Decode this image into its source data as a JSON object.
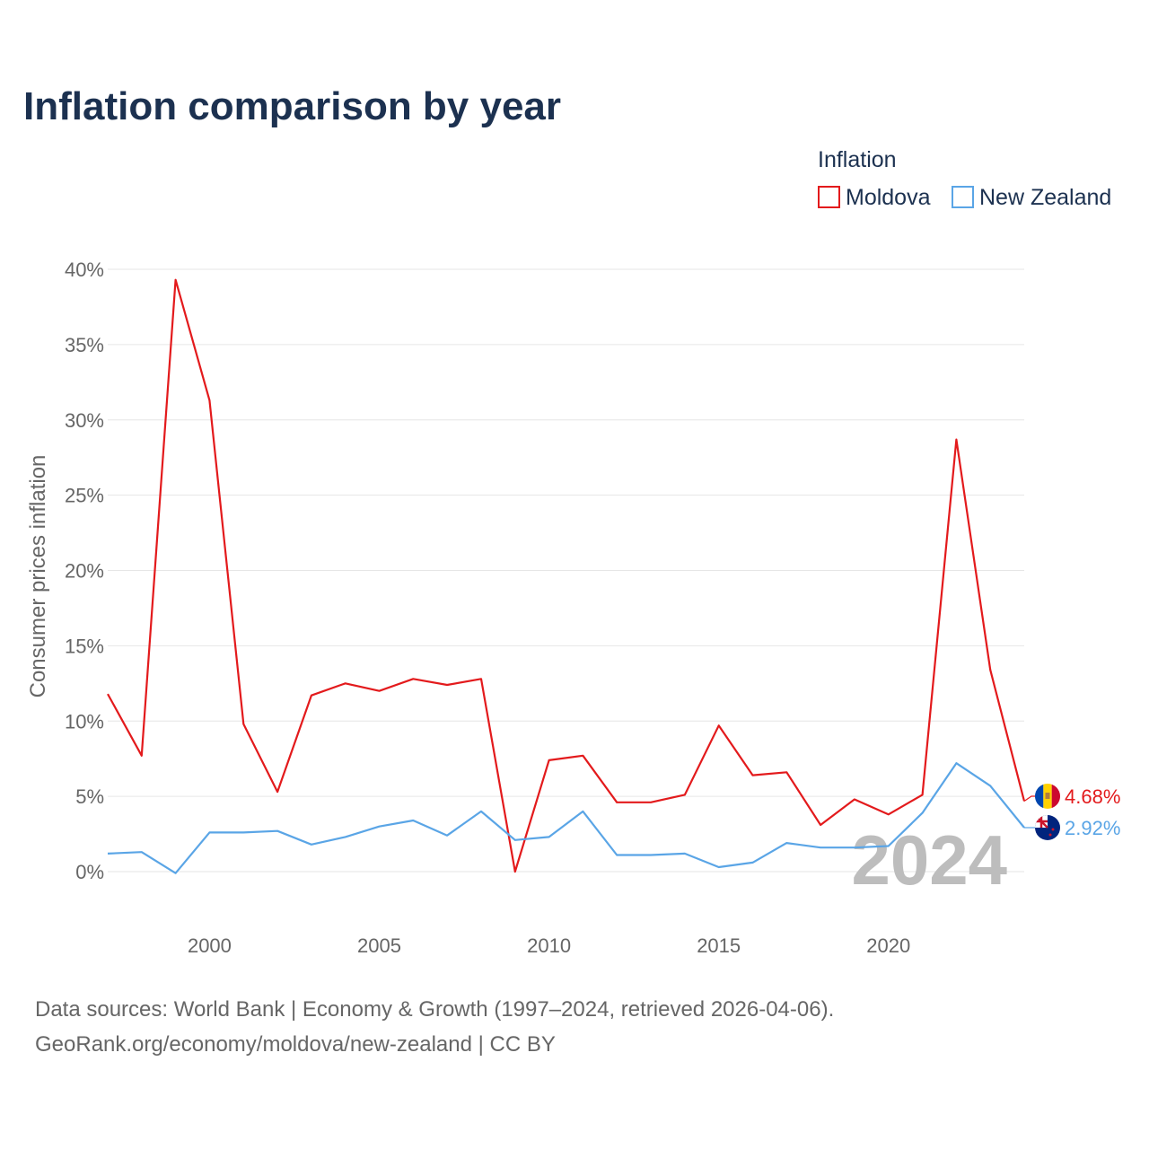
{
  "chart_data": {
    "type": "line",
    "title": "Inflation comparison by year",
    "legend_title": "Inflation",
    "ylabel": "Consumer prices inflation",
    "xlabel": "",
    "ylim": [
      0,
      40
    ],
    "xlim": [
      1997,
      2024
    ],
    "y_ticks": [
      0,
      5,
      10,
      15,
      20,
      25,
      30,
      35,
      40
    ],
    "y_tick_labels": [
      "0%",
      "5%",
      "10%",
      "15%",
      "20%",
      "25%",
      "30%",
      "35%",
      "40%"
    ],
    "x_ticks": [
      2000,
      2005,
      2010,
      2015,
      2020
    ],
    "x_tick_labels": [
      "2000",
      "2005",
      "2010",
      "2015",
      "2020"
    ],
    "grid": true,
    "legend_position": "top-right",
    "watermark_year": "2024",
    "x": [
      1997,
      1998,
      1999,
      2000,
      2001,
      2002,
      2003,
      2004,
      2005,
      2006,
      2007,
      2008,
      2009,
      2010,
      2011,
      2012,
      2013,
      2014,
      2015,
      2016,
      2017,
      2018,
      2019,
      2020,
      2021,
      2022,
      2023,
      2024
    ],
    "series": [
      {
        "name": "Moldova",
        "color": "#e31a1c",
        "end_label": "4.68%",
        "flag_icon": "moldova-flag-icon",
        "values": [
          11.8,
          7.7,
          39.3,
          31.3,
          9.8,
          5.3,
          11.7,
          12.5,
          12.0,
          12.8,
          12.4,
          12.8,
          0.0,
          7.4,
          7.7,
          4.6,
          4.6,
          5.1,
          9.7,
          6.4,
          6.6,
          3.1,
          4.8,
          3.8,
          5.1,
          28.7,
          13.4,
          4.68
        ]
      },
      {
        "name": "New Zealand",
        "color": "#5aa5e6",
        "end_label": "2.92%",
        "flag_icon": "new-zealand-flag-icon",
        "values": [
          1.2,
          1.3,
          -0.1,
          2.6,
          2.6,
          2.7,
          1.8,
          2.3,
          3.0,
          3.4,
          2.4,
          4.0,
          2.1,
          2.3,
          4.0,
          1.1,
          1.1,
          1.2,
          0.3,
          0.6,
          1.9,
          1.6,
          1.6,
          1.7,
          3.9,
          7.2,
          5.7,
          2.92
        ]
      }
    ]
  },
  "footer": {
    "source_line": "Data sources: World Bank | Economy & Growth (1997–2024, retrieved 2026-04-06).",
    "credit_line": "GeoRank.org/economy/moldova/new-zealand | CC BY"
  }
}
